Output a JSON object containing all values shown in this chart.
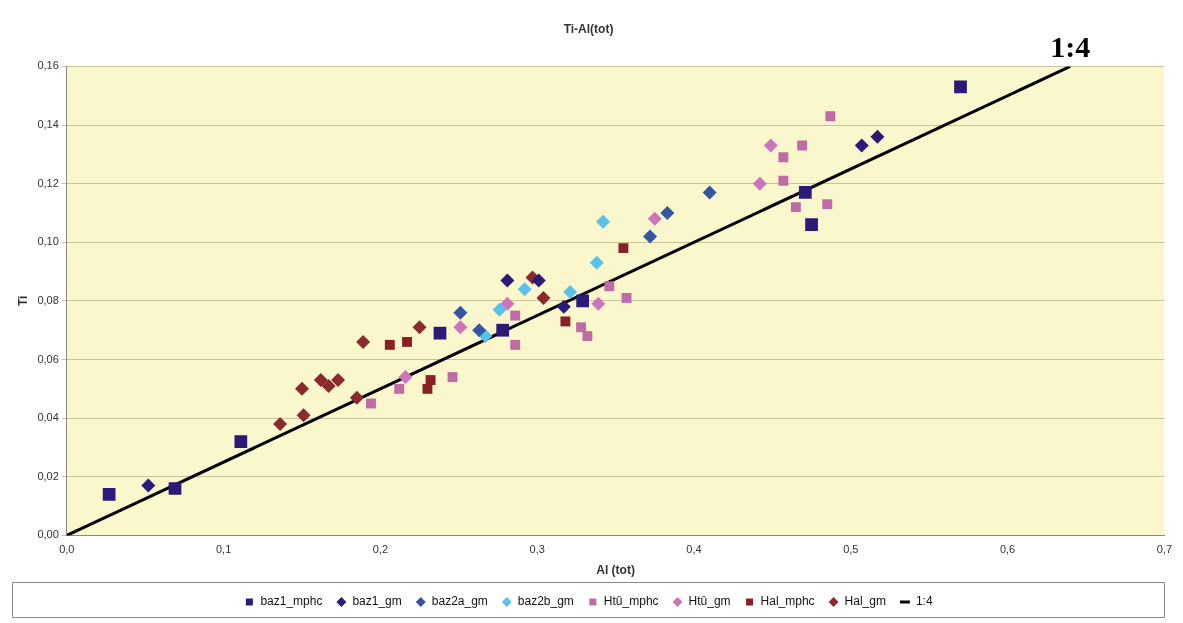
{
  "chart_data": {
    "type": "scatter",
    "title": "Ti-Al(tot)",
    "xlabel": "Al (tot)",
    "ylabel": "Ti",
    "xlim": [
      0,
      0.7
    ],
    "ylim": [
      0,
      0.16
    ],
    "xticks": [
      {
        "value": 0,
        "label": "0,0"
      },
      {
        "value": 0.1,
        "label": "0,1"
      },
      {
        "value": 0.2,
        "label": "0,2"
      },
      {
        "value": 0.3,
        "label": "0,3"
      },
      {
        "value": 0.4,
        "label": "0,4"
      },
      {
        "value": 0.5,
        "label": "0,5"
      },
      {
        "value": 0.6,
        "label": "0,6"
      },
      {
        "value": 0.7,
        "label": "0,7"
      }
    ],
    "yticks": [
      {
        "value": 0,
        "label": "0,00"
      },
      {
        "value": 0.02,
        "label": "0,02"
      },
      {
        "value": 0.04,
        "label": "0,04"
      },
      {
        "value": 0.06,
        "label": "0,06"
      },
      {
        "value": 0.08,
        "label": "0,08"
      },
      {
        "value": 0.1,
        "label": "0,10"
      },
      {
        "value": 0.12,
        "label": "0,12"
      },
      {
        "value": 0.14,
        "label": "0,14"
      },
      {
        "value": 0.16,
        "label": "0,16"
      }
    ],
    "grid": "y",
    "legend": "bottom",
    "series": [
      {
        "name": "baz1_mphc",
        "color": "#2b1a78",
        "marker": "square",
        "x": [
          0.027,
          0.069,
          0.111,
          0.238,
          0.278,
          0.329,
          0.471,
          0.475,
          0.57
        ],
        "values": [
          0.014,
          0.016,
          0.032,
          0.069,
          0.07,
          0.08,
          0.117,
          0.106,
          0.153
        ]
      },
      {
        "name": "baz1_gm",
        "color": "#2b1a78",
        "marker": "diamond",
        "x": [
          0.052,
          0.281,
          0.301,
          0.317,
          0.507,
          0.517
        ],
        "values": [
          0.017,
          0.087,
          0.087,
          0.078,
          0.133,
          0.136
        ]
      },
      {
        "name": "baz2a_gm",
        "color": "#3454a4",
        "marker": "diamond",
        "x": [
          0.251,
          0.263,
          0.372,
          0.383,
          0.41
        ],
        "values": [
          0.076,
          0.07,
          0.102,
          0.11,
          0.117
        ]
      },
      {
        "name": "baz2b_gm",
        "color": "#5ac2ea",
        "marker": "diamond",
        "x": [
          0.267,
          0.276,
          0.292,
          0.321,
          0.338,
          0.342
        ],
        "values": [
          0.068,
          0.077,
          0.084,
          0.083,
          0.093,
          0.107
        ]
      },
      {
        "name": "Htû_mphc",
        "color": "#c06aa8",
        "marker": "square",
        "x": [
          0.194,
          0.212,
          0.246,
          0.286,
          0.286,
          0.328,
          0.332,
          0.346,
          0.357,
          0.457,
          0.457,
          0.465,
          0.469,
          0.485,
          0.487
        ],
        "values": [
          0.045,
          0.05,
          0.054,
          0.075,
          0.065,
          0.071,
          0.068,
          0.085,
          0.081,
          0.129,
          0.121,
          0.112,
          0.133,
          0.113,
          0.143
        ]
      },
      {
        "name": "Htû_gm",
        "color": "#cc74bc",
        "marker": "diamond",
        "x": [
          0.216,
          0.251,
          0.281,
          0.339,
          0.375,
          0.442,
          0.449
        ],
        "values": [
          0.054,
          0.071,
          0.079,
          0.079,
          0.108,
          0.12,
          0.133
        ]
      },
      {
        "name": "Hal_mphc",
        "color": "#8a2024",
        "marker": "square",
        "x": [
          0.206,
          0.217,
          0.23,
          0.232,
          0.318,
          0.355
        ],
        "values": [
          0.065,
          0.066,
          0.05,
          0.053,
          0.073,
          0.098
        ]
      },
      {
        "name": "Hal_gm",
        "color": "#8a2a2c",
        "marker": "diamond",
        "x": [
          0.136,
          0.15,
          0.151,
          0.162,
          0.167,
          0.173,
          0.185,
          0.189,
          0.225,
          0.297,
          0.304
        ],
        "values": [
          0.038,
          0.05,
          0.041,
          0.053,
          0.051,
          0.053,
          0.047,
          0.066,
          0.071,
          0.088,
          0.081
        ]
      },
      {
        "name": "1:4",
        "type": "line",
        "color": "#000000",
        "marker": "none",
        "x": [
          0,
          0.64
        ],
        "values": [
          0,
          0.16
        ]
      }
    ],
    "annotations": [
      {
        "text": "1:4",
        "x": 0.64,
        "y": 0.16
      }
    ]
  }
}
